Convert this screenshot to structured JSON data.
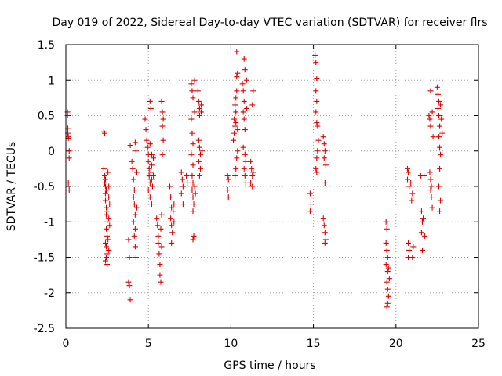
{
  "chart_data": {
    "type": "scatter",
    "title": "Day 019 of 2022, Sidereal Day-to-day VTEC variation (SDTVAR) for receiver flrs",
    "xlabel": "GPS time / hours",
    "ylabel": "SDTVAR / TECUs",
    "xlim": [
      0,
      25
    ],
    "ylim": [
      -2.5,
      1.5
    ],
    "xticks": [
      0,
      5,
      10,
      15,
      20,
      25
    ],
    "yticks": [
      -2.5,
      -2,
      -1.5,
      -1,
      -0.5,
      0,
      0.5,
      1,
      1.5
    ],
    "xtick_labels": [
      "0",
      "5",
      "10",
      "15",
      "20",
      "25"
    ],
    "ytick_labels": [
      "-2.5",
      "-2",
      "-1.5",
      "-1",
      "-0.5",
      "0",
      "0.5",
      "1",
      "1.5"
    ],
    "grid": true,
    "marker": "+",
    "color": "#e00000",
    "series": [
      {
        "name": "flrs",
        "points": [
          [
            0.1,
            0.55
          ],
          [
            0.1,
            0.5
          ],
          [
            0.12,
            0.32
          ],
          [
            0.12,
            0.25
          ],
          [
            0.15,
            0.2
          ],
          [
            0.15,
            0.18
          ],
          [
            0.2,
            0.0
          ],
          [
            0.2,
            -0.1
          ],
          [
            0.15,
            -0.45
          ],
          [
            0.2,
            -0.55
          ],
          [
            2.3,
            0.27
          ],
          [
            2.35,
            0.25
          ],
          [
            2.3,
            -0.25
          ],
          [
            2.35,
            -0.35
          ],
          [
            2.4,
            -0.4
          ],
          [
            2.35,
            -0.45
          ],
          [
            2.4,
            -0.5
          ],
          [
            2.45,
            -0.55
          ],
          [
            2.4,
            -0.6
          ],
          [
            2.4,
            -0.7
          ],
          [
            2.45,
            -0.8
          ],
          [
            2.5,
            -0.85
          ],
          [
            2.45,
            -0.9
          ],
          [
            2.5,
            -1.0
          ],
          [
            2.45,
            -1.1
          ],
          [
            2.5,
            -1.2
          ],
          [
            2.4,
            -1.3
          ],
          [
            2.45,
            -1.35
          ],
          [
            2.5,
            -1.45
          ],
          [
            2.45,
            -1.5
          ],
          [
            2.4,
            -1.55
          ],
          [
            2.5,
            -1.6
          ],
          [
            2.55,
            -0.3
          ],
          [
            2.6,
            -0.5
          ],
          [
            2.6,
            -0.65
          ],
          [
            2.65,
            -0.75
          ],
          [
            2.6,
            -0.95
          ],
          [
            2.65,
            -1.05
          ],
          [
            2.55,
            -1.25
          ],
          [
            2.6,
            -1.4
          ],
          [
            3.8,
            -1.25
          ],
          [
            3.85,
            -1.5
          ],
          [
            3.8,
            -1.85
          ],
          [
            3.85,
            -1.9
          ],
          [
            3.9,
            -2.1
          ],
          [
            3.9,
            0.08
          ],
          [
            4.0,
            -0.15
          ],
          [
            4.05,
            -0.25
          ],
          [
            4.1,
            -0.4
          ],
          [
            4.15,
            -0.55
          ],
          [
            4.1,
            -0.65
          ],
          [
            4.15,
            -0.75
          ],
          [
            4.2,
            -0.9
          ],
          [
            4.1,
            -1.0
          ],
          [
            4.2,
            -1.1
          ],
          [
            4.15,
            -1.2
          ],
          [
            4.2,
            -1.35
          ],
          [
            4.25,
            -1.5
          ],
          [
            4.2,
            0.12
          ],
          [
            4.25,
            0.0
          ],
          [
            4.3,
            -0.3
          ],
          [
            4.3,
            -0.8
          ],
          [
            4.8,
            0.45
          ],
          [
            4.85,
            0.3
          ],
          [
            4.9,
            0.15
          ],
          [
            4.95,
            0.05
          ],
          [
            5.0,
            -0.05
          ],
          [
            5.0,
            -0.15
          ],
          [
            5.05,
            -0.25
          ],
          [
            5.05,
            -0.35
          ],
          [
            5.1,
            -0.45
          ],
          [
            5.0,
            -0.55
          ],
          [
            5.1,
            0.7
          ],
          [
            5.15,
            0.6
          ],
          [
            5.1,
            0.1
          ],
          [
            5.2,
            -0.05
          ],
          [
            5.2,
            -0.2
          ],
          [
            5.15,
            -0.3
          ],
          [
            5.2,
            -0.4
          ],
          [
            5.25,
            -0.5
          ],
          [
            5.1,
            -0.65
          ],
          [
            5.2,
            -0.75
          ],
          [
            5.3,
            -0.1
          ],
          [
            5.3,
            -0.35
          ],
          [
            5.5,
            -0.95
          ],
          [
            5.55,
            -1.05
          ],
          [
            5.6,
            -1.2
          ],
          [
            5.6,
            -1.3
          ],
          [
            5.65,
            -1.45
          ],
          [
            5.7,
            -1.6
          ],
          [
            5.7,
            -1.75
          ],
          [
            5.75,
            -1.85
          ],
          [
            5.8,
            0.7
          ],
          [
            5.85,
            0.55
          ],
          [
            5.9,
            0.45
          ],
          [
            5.85,
            0.35
          ],
          [
            5.9,
            0.15
          ],
          [
            5.85,
            -0.05
          ],
          [
            5.8,
            -0.9
          ],
          [
            5.75,
            -1.1
          ],
          [
            5.8,
            -1.35
          ],
          [
            6.3,
            -0.5
          ],
          [
            6.35,
            -0.65
          ],
          [
            6.4,
            -0.8
          ],
          [
            6.35,
            -0.95
          ],
          [
            6.4,
            -1.05
          ],
          [
            6.45,
            -1.15
          ],
          [
            6.4,
            -1.3
          ],
          [
            6.5,
            -0.85
          ],
          [
            6.55,
            -0.75
          ],
          [
            6.55,
            -1.0
          ],
          [
            7.0,
            -0.3
          ],
          [
            7.05,
            -0.4
          ],
          [
            7.1,
            -0.5
          ],
          [
            7.0,
            -0.6
          ],
          [
            7.1,
            -0.75
          ],
          [
            7.3,
            -0.35
          ],
          [
            7.35,
            -0.45
          ],
          [
            7.6,
            0.95
          ],
          [
            7.65,
            0.85
          ],
          [
            7.7,
            0.75
          ],
          [
            7.6,
            0.45
          ],
          [
            7.65,
            0.25
          ],
          [
            7.7,
            0.1
          ],
          [
            7.6,
            -0.05
          ],
          [
            7.7,
            -0.2
          ],
          [
            7.65,
            -0.35
          ],
          [
            7.7,
            -0.45
          ],
          [
            7.65,
            -0.55
          ],
          [
            7.7,
            -0.65
          ],
          [
            7.75,
            -0.75
          ],
          [
            7.7,
            -0.85
          ],
          [
            7.75,
            -1.2
          ],
          [
            7.7,
            -1.25
          ],
          [
            7.8,
            -0.5
          ],
          [
            7.85,
            -0.6
          ],
          [
            7.8,
            1.0
          ],
          [
            7.8,
            0.55
          ],
          [
            8.0,
            0.85
          ],
          [
            8.05,
            0.7
          ],
          [
            8.1,
            0.6
          ],
          [
            8.1,
            0.5
          ],
          [
            8.05,
            0.15
          ],
          [
            8.1,
            0.05
          ],
          [
            8.15,
            -0.05
          ],
          [
            8.05,
            -0.15
          ],
          [
            8.15,
            -0.25
          ],
          [
            8.1,
            -0.35
          ],
          [
            8.2,
            0.65
          ],
          [
            8.2,
            0.55
          ],
          [
            8.25,
            0.0
          ],
          [
            9.8,
            -0.35
          ],
          [
            9.85,
            -0.4
          ],
          [
            9.8,
            -0.55
          ],
          [
            9.85,
            -0.65
          ],
          [
            10.15,
            0.15
          ],
          [
            10.2,
            0.25
          ],
          [
            10.25,
            0.35
          ],
          [
            10.2,
            0.45
          ],
          [
            10.3,
            0.55
          ],
          [
            10.25,
            0.65
          ],
          [
            10.3,
            0.75
          ],
          [
            10.35,
            0.85
          ],
          [
            10.35,
            1.05
          ],
          [
            10.4,
            1.1
          ],
          [
            10.35,
            1.4
          ],
          [
            10.4,
            0.0
          ],
          [
            10.35,
            -0.1
          ],
          [
            10.3,
            -0.25
          ],
          [
            10.25,
            -0.35
          ],
          [
            10.3,
            0.4
          ],
          [
            10.4,
            0.3
          ],
          [
            10.7,
            0.95
          ],
          [
            10.75,
            0.85
          ],
          [
            10.8,
            0.7
          ],
          [
            10.75,
            0.55
          ],
          [
            10.8,
            0.45
          ],
          [
            10.85,
            0.3
          ],
          [
            10.75,
            0.05
          ],
          [
            10.85,
            -0.05
          ],
          [
            10.9,
            -0.15
          ],
          [
            10.8,
            -0.25
          ],
          [
            10.85,
            -0.35
          ],
          [
            10.9,
            -0.45
          ],
          [
            10.8,
            1.3
          ],
          [
            10.85,
            1.15
          ],
          [
            10.95,
            1.0
          ],
          [
            10.95,
            0.6
          ],
          [
            11.2,
            -0.15
          ],
          [
            11.25,
            -0.25
          ],
          [
            11.3,
            -0.35
          ],
          [
            11.2,
            -0.45
          ],
          [
            11.3,
            -0.5
          ],
          [
            11.35,
            0.85
          ],
          [
            11.3,
            0.65
          ],
          [
            11.35,
            -0.3
          ],
          [
            14.8,
            -0.6
          ],
          [
            14.85,
            -0.75
          ],
          [
            14.8,
            -0.85
          ],
          [
            15.1,
            1.35
          ],
          [
            15.15,
            1.25
          ],
          [
            15.2,
            1.02
          ],
          [
            15.15,
            0.85
          ],
          [
            15.2,
            0.7
          ],
          [
            15.15,
            0.55
          ],
          [
            15.2,
            0.4
          ],
          [
            15.25,
            0.35
          ],
          [
            15.3,
            0.15
          ],
          [
            15.25,
            0.0
          ],
          [
            15.2,
            -0.1
          ],
          [
            15.15,
            -0.25
          ],
          [
            15.2,
            -0.3
          ],
          [
            15.6,
            0.2
          ],
          [
            15.65,
            0.1
          ],
          [
            15.7,
            0.0
          ],
          [
            15.65,
            -0.1
          ],
          [
            15.75,
            -0.2
          ],
          [
            15.7,
            -0.45
          ],
          [
            15.6,
            -0.95
          ],
          [
            15.65,
            -1.05
          ],
          [
            15.7,
            -1.15
          ],
          [
            15.75,
            -1.25
          ],
          [
            15.7,
            -1.3
          ],
          [
            19.4,
            -1.0
          ],
          [
            19.45,
            -1.1
          ],
          [
            19.4,
            -1.3
          ],
          [
            19.45,
            -1.4
          ],
          [
            19.5,
            -1.5
          ],
          [
            19.4,
            -1.6
          ],
          [
            19.5,
            -1.7
          ],
          [
            19.45,
            -1.85
          ],
          [
            19.5,
            -1.95
          ],
          [
            19.55,
            -2.05
          ],
          [
            19.5,
            -2.15
          ],
          [
            19.6,
            -1.8
          ],
          [
            19.55,
            -1.65
          ],
          [
            19.45,
            -2.2
          ],
          [
            20.7,
            -0.25
          ],
          [
            20.75,
            -0.3
          ],
          [
            20.7,
            -0.4
          ],
          [
            20.8,
            -0.5
          ],
          [
            20.75,
            -1.3
          ],
          [
            20.8,
            -1.4
          ],
          [
            20.75,
            -1.5
          ],
          [
            20.9,
            -0.45
          ],
          [
            21.0,
            -0.6
          ],
          [
            20.95,
            -0.7
          ],
          [
            21.05,
            -1.35
          ],
          [
            21.0,
            -1.5
          ],
          [
            21.5,
            -0.35
          ],
          [
            21.55,
            -0.85
          ],
          [
            21.6,
            -1.0
          ],
          [
            21.55,
            -1.15
          ],
          [
            21.6,
            -1.4
          ],
          [
            21.65,
            -0.95
          ],
          [
            21.7,
            -0.35
          ],
          [
            21.75,
            -1.2
          ],
          [
            22.0,
            0.5
          ],
          [
            22.05,
            0.45
          ],
          [
            22.1,
            0.35
          ],
          [
            22.05,
            -0.3
          ],
          [
            22.1,
            -0.4
          ],
          [
            22.15,
            -0.5
          ],
          [
            22.1,
            -0.55
          ],
          [
            22.15,
            -0.65
          ],
          [
            22.2,
            -0.8
          ],
          [
            22.1,
            0.85
          ],
          [
            22.2,
            0.55
          ],
          [
            22.25,
            0.2
          ],
          [
            22.5,
            0.9
          ],
          [
            22.55,
            0.8
          ],
          [
            22.6,
            0.7
          ],
          [
            22.55,
            0.6
          ],
          [
            22.6,
            0.5
          ],
          [
            22.65,
            0.35
          ],
          [
            22.6,
            0.2
          ],
          [
            22.65,
            0.05
          ],
          [
            22.7,
            -0.05
          ],
          [
            22.65,
            -0.25
          ],
          [
            22.6,
            -0.5
          ],
          [
            22.7,
            -0.7
          ],
          [
            22.65,
            -0.85
          ],
          [
            22.7,
            0.65
          ],
          [
            22.75,
            0.45
          ],
          [
            22.8,
            0.25
          ]
        ]
      }
    ]
  }
}
